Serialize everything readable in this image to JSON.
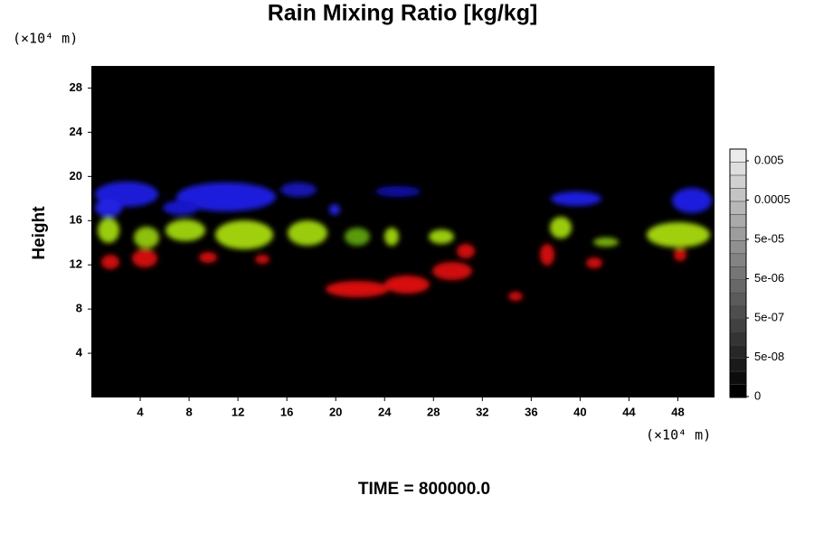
{
  "chart_data": {
    "type": "field",
    "title": "Rain Mixing Ratio [kg/kg]",
    "y_label": "Height",
    "y_unit": "(×10⁴ m)",
    "x_unit": "(×10⁴ m)",
    "footer": "TIME = 800000.0",
    "xlim": [
      0,
      51
    ],
    "xticks": [
      4,
      8,
      12,
      16,
      20,
      24,
      28,
      32,
      36,
      40,
      44,
      48
    ],
    "ylim": [
      0,
      30
    ],
    "yticks": [
      4,
      8,
      12,
      16,
      20,
      24,
      28
    ],
    "colorbar_ticks": [
      0,
      {
        "value": 5e-08,
        "label": "5e-08"
      },
      {
        "value": 5e-07,
        "label": "5e-07"
      },
      {
        "value": 5e-06,
        "label": "5e-06"
      },
      {
        "value": 5e-05,
        "label": "5e-05"
      },
      0.0005,
      0.005
    ]
  }
}
